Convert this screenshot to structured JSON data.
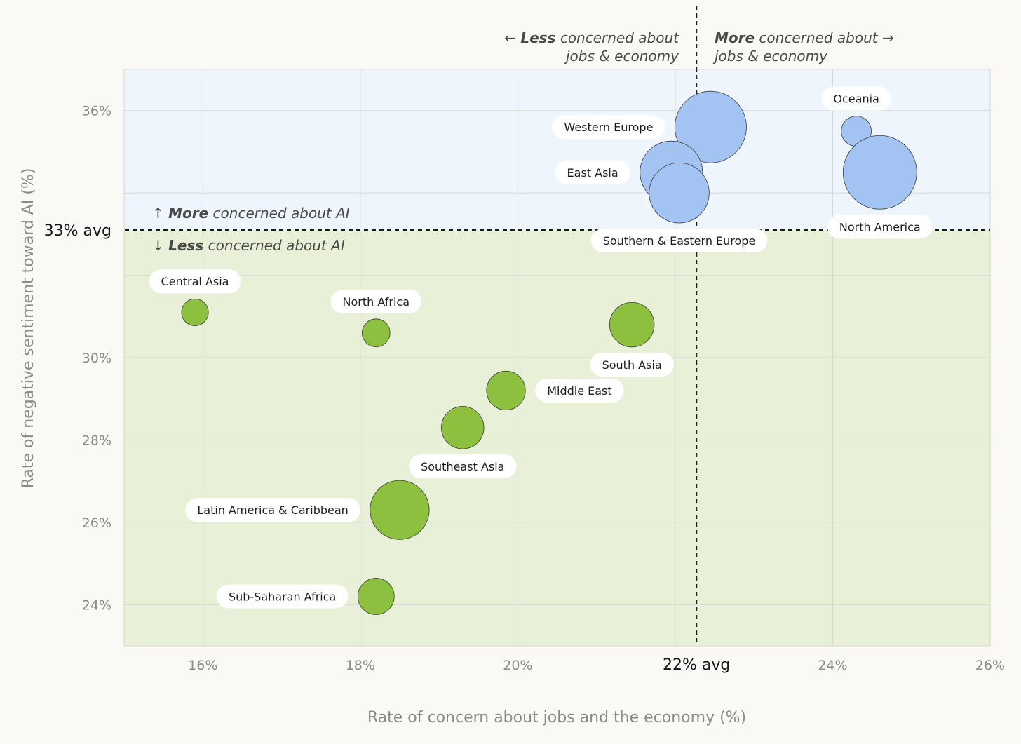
{
  "chart_data": {
    "type": "scatter",
    "title": "",
    "xlabel": "Rate of concern about jobs and the economy (%)",
    "ylabel": "Rate of negative sentiment toward AI (%)",
    "xlim": [
      15,
      26
    ],
    "ylim": [
      23,
      37
    ],
    "x_ticks": [
      {
        "value": 16,
        "label": "16%"
      },
      {
        "value": 18,
        "label": "18%"
      },
      {
        "value": 20,
        "label": "20%"
      },
      {
        "value": 24,
        "label": "24%"
      },
      {
        "value": 26,
        "label": "26%"
      }
    ],
    "y_ticks": [
      {
        "value": 24,
        "label": "24%"
      },
      {
        "value": 26,
        "label": "26%"
      },
      {
        "value": 28,
        "label": "28%"
      },
      {
        "value": 30,
        "label": "30%"
      },
      {
        "value": 36,
        "label": "36%"
      }
    ],
    "x_avg": {
      "value": 22.27,
      "label": "22% avg"
    },
    "y_avg": {
      "value": 33.1,
      "label": "33% avg"
    },
    "quadrant_labels": {
      "left_bold": "Less",
      "left_rest": " concerned about",
      "left_line2": "jobs & economy",
      "right_bold": "More",
      "right_rest": " concerned about",
      "right_line2": "jobs & economy",
      "top_bold": "More",
      "top_rest": " concerned about AI",
      "bottom_bold": "Less",
      "bottom_rest": " concerned about AI",
      "arrow_left": "←",
      "arrow_right": "→",
      "arrow_up": "↑",
      "arrow_down": "↓"
    },
    "colors": {
      "above_fill": "#a3c4f3",
      "below_fill": "#8dc03f",
      "above_bg": "#eef5fd",
      "below_bg": "#e8f1d7",
      "grid": "#d6d8d0",
      "label_bg": "#ffffff"
    },
    "points": [
      {
        "name": "Western Europe",
        "x": 22.45,
        "y": 35.6,
        "size": 8.5,
        "label_pos": "left"
      },
      {
        "name": "East Asia",
        "x": 21.95,
        "y": 34.5,
        "size": 6.5,
        "label_pos": "left"
      },
      {
        "name": "Southern & Eastern Europe",
        "x": 22.05,
        "y": 34.0,
        "size": 6.0,
        "label_pos": "below"
      },
      {
        "name": "Oceania",
        "x": 24.3,
        "y": 35.5,
        "size": 1.5,
        "label_pos": "above"
      },
      {
        "name": "North America",
        "x": 24.6,
        "y": 34.5,
        "size": 9.0,
        "label_pos": "below"
      },
      {
        "name": "Central Asia",
        "x": 15.9,
        "y": 31.1,
        "size": 1.2,
        "label_pos": "above"
      },
      {
        "name": "North Africa",
        "x": 18.2,
        "y": 30.6,
        "size": 1.3,
        "label_pos": "above"
      },
      {
        "name": "South Asia",
        "x": 21.45,
        "y": 30.8,
        "size": 3.3,
        "label_pos": "below"
      },
      {
        "name": "Middle East",
        "x": 19.85,
        "y": 29.2,
        "size": 2.5,
        "label_pos": "right"
      },
      {
        "name": "Southeast Asia",
        "x": 19.3,
        "y": 28.3,
        "size": 3.0,
        "label_pos": "below"
      },
      {
        "name": "Latin America & Caribbean",
        "x": 18.5,
        "y": 26.3,
        "size": 5.8,
        "label_pos": "left"
      },
      {
        "name": "Sub-Saharan Africa",
        "x": 18.2,
        "y": 24.2,
        "size": 2.2,
        "label_pos": "left"
      }
    ]
  }
}
